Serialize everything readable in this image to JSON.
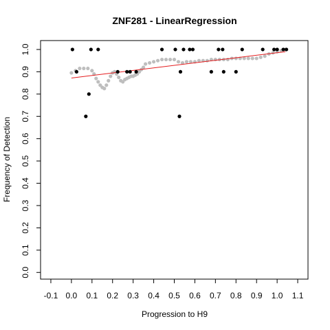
{
  "chart_data": {
    "type": "scatter",
    "title": "ZNF281 - LinearRegression",
    "xlabel": "Progression to H9",
    "ylabel": "Frequency of Detection",
    "xlim": [
      -0.15,
      1.15
    ],
    "ylim": [
      -0.03,
      1.04
    ],
    "xticks": [
      -0.1,
      0.0,
      0.1,
      0.2,
      0.3,
      0.4,
      0.5,
      0.6,
      0.7,
      0.8,
      0.9,
      1.0,
      1.1
    ],
    "xtick_labels": [
      "-0.1",
      "0.0",
      "0.1",
      "0.2",
      "0.3",
      "0.4",
      "0.5",
      "0.6",
      "0.7",
      "0.8",
      "0.9",
      "1.0",
      "1.1"
    ],
    "yticks": [
      0.0,
      0.1,
      0.2,
      0.3,
      0.4,
      0.5,
      0.6,
      0.7,
      0.8,
      0.9,
      1.0
    ],
    "ytick_labels": [
      "0.0",
      "0.1",
      "0.2",
      "0.3",
      "0.4",
      "0.5",
      "0.6",
      "0.7",
      "0.8",
      "0.9",
      "1.0"
    ],
    "grid": false,
    "series": [
      {
        "role": "observed",
        "color": "#000000",
        "points": [
          [
            0.005,
            1.0
          ],
          [
            0.025,
            0.9
          ],
          [
            0.07,
            0.7
          ],
          [
            0.085,
            0.8
          ],
          [
            0.095,
            1.0
          ],
          [
            0.13,
            1.0
          ],
          [
            0.225,
            0.9
          ],
          [
            0.27,
            0.9
          ],
          [
            0.285,
            0.9
          ],
          [
            0.315,
            0.9
          ],
          [
            0.44,
            1.0
          ],
          [
            0.505,
            1.0
          ],
          [
            0.525,
            0.7
          ],
          [
            0.53,
            0.9
          ],
          [
            0.545,
            1.0
          ],
          [
            0.575,
            1.0
          ],
          [
            0.59,
            1.0
          ],
          [
            0.68,
            0.9
          ],
          [
            0.715,
            1.0
          ],
          [
            0.735,
            1.0
          ],
          [
            0.74,
            0.9
          ],
          [
            0.8,
            0.9
          ],
          [
            0.83,
            1.0
          ],
          [
            0.93,
            1.0
          ],
          [
            0.985,
            1.0
          ],
          [
            1.0,
            1.0
          ],
          [
            1.03,
            1.0
          ],
          [
            1.045,
            1.0
          ]
        ]
      },
      {
        "role": "smoothed",
        "color": "#bebebe",
        "points": [
          [
            0.0,
            0.895
          ],
          [
            0.02,
            0.905
          ],
          [
            0.04,
            0.915
          ],
          [
            0.06,
            0.915
          ],
          [
            0.08,
            0.915
          ],
          [
            0.1,
            0.905
          ],
          [
            0.11,
            0.89
          ],
          [
            0.12,
            0.87
          ],
          [
            0.13,
            0.855
          ],
          [
            0.14,
            0.84
          ],
          [
            0.15,
            0.83
          ],
          [
            0.16,
            0.825
          ],
          [
            0.17,
            0.84
          ],
          [
            0.18,
            0.86
          ],
          [
            0.19,
            0.88
          ],
          [
            0.2,
            0.895
          ],
          [
            0.21,
            0.9
          ],
          [
            0.22,
            0.89
          ],
          [
            0.23,
            0.875
          ],
          [
            0.24,
            0.86
          ],
          [
            0.25,
            0.855
          ],
          [
            0.26,
            0.865
          ],
          [
            0.27,
            0.87
          ],
          [
            0.28,
            0.875
          ],
          [
            0.29,
            0.88
          ],
          [
            0.3,
            0.88
          ],
          [
            0.31,
            0.885
          ],
          [
            0.32,
            0.89
          ],
          [
            0.33,
            0.9
          ],
          [
            0.34,
            0.91
          ],
          [
            0.35,
            0.92
          ],
          [
            0.36,
            0.935
          ],
          [
            0.38,
            0.94
          ],
          [
            0.4,
            0.945
          ],
          [
            0.42,
            0.95
          ],
          [
            0.44,
            0.955
          ],
          [
            0.46,
            0.955
          ],
          [
            0.48,
            0.955
          ],
          [
            0.5,
            0.955
          ],
          [
            0.52,
            0.945
          ],
          [
            0.54,
            0.94
          ],
          [
            0.56,
            0.945
          ],
          [
            0.58,
            0.945
          ],
          [
            0.6,
            0.945
          ],
          [
            0.62,
            0.95
          ],
          [
            0.64,
            0.95
          ],
          [
            0.66,
            0.95
          ],
          [
            0.68,
            0.955
          ],
          [
            0.7,
            0.955
          ],
          [
            0.72,
            0.955
          ],
          [
            0.74,
            0.955
          ],
          [
            0.76,
            0.955
          ],
          [
            0.78,
            0.96
          ],
          [
            0.8,
            0.96
          ],
          [
            0.82,
            0.96
          ],
          [
            0.84,
            0.96
          ],
          [
            0.86,
            0.96
          ],
          [
            0.88,
            0.96
          ],
          [
            0.9,
            0.96
          ],
          [
            0.92,
            0.965
          ],
          [
            0.94,
            0.97
          ],
          [
            0.96,
            0.98
          ],
          [
            0.98,
            0.985
          ],
          [
            1.0,
            0.99
          ],
          [
            1.02,
            0.995
          ],
          [
            1.04,
            1.0
          ]
        ]
      }
    ],
    "fit_line": {
      "color": "#e41a1c",
      "x": [
        0.0,
        1.04
      ],
      "y": [
        0.872,
        0.99
      ]
    }
  }
}
